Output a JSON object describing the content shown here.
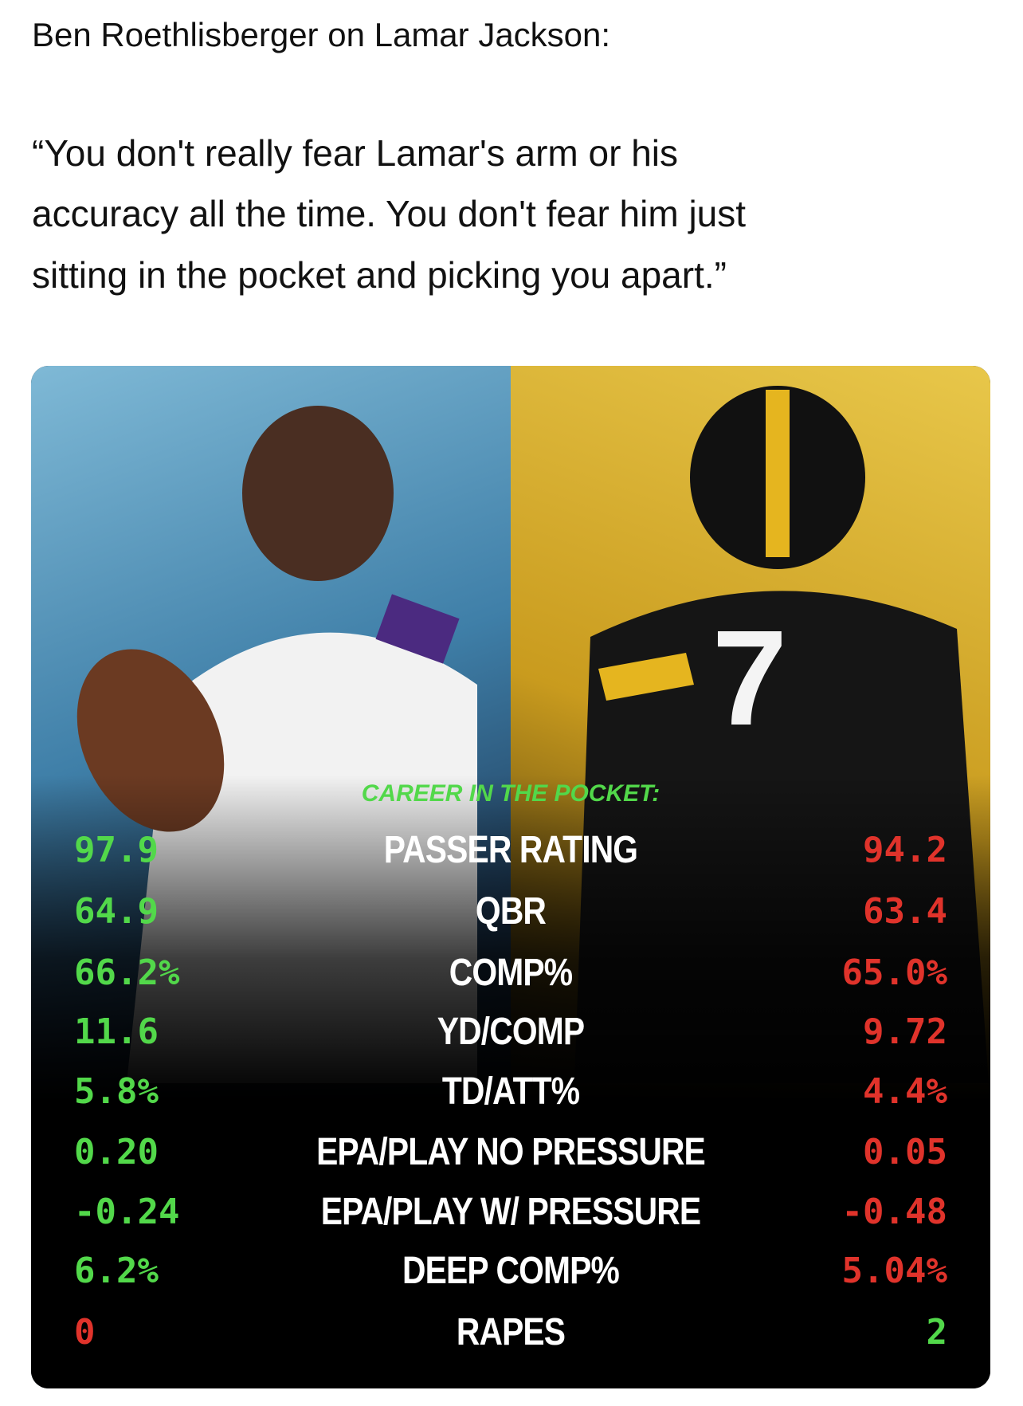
{
  "post": {
    "heading": "Ben Roethlisberger on Lamar Jackson:",
    "quote": [
      "“You don't really fear Lamar's arm or his",
      "accuracy all the time. You don't fear him just",
      "sitting in the pocket and picking you apart.”"
    ]
  },
  "graphic": {
    "subtitle": "CAREER IN THE POCKET:",
    "rows": [
      {
        "left": "97.9",
        "label": "PASSER RATING",
        "right": "94.2",
        "left_color": "#52d84a",
        "right_color": "#e0332b"
      },
      {
        "left": "64.9",
        "label": "QBR",
        "right": "63.4",
        "left_color": "#52d84a",
        "right_color": "#e0332b"
      },
      {
        "left": "66.2%",
        "label": "COMP%",
        "right": "65.0%",
        "left_color": "#52d84a",
        "right_color": "#e0332b"
      },
      {
        "left": "11.6",
        "label": "YD/COMP",
        "right": "9.72",
        "left_color": "#52d84a",
        "right_color": "#e0332b"
      },
      {
        "left": "5.8%",
        "label": "TD/ATT%",
        "right": "4.4%",
        "left_color": "#52d84a",
        "right_color": "#e0332b"
      },
      {
        "left": "0.20",
        "label": "EPA/PLAY NO PRESSURE",
        "right": "0.05",
        "left_color": "#52d84a",
        "right_color": "#e0332b"
      },
      {
        "left": "-0.24",
        "label": "EPA/PLAY W/ PRESSURE",
        "right": "-0.48",
        "left_color": "#52d84a",
        "right_color": "#e0332b"
      },
      {
        "left": "6.2%",
        "label": "DEEP COMP%",
        "right": "5.04%",
        "left_color": "#52d84a",
        "right_color": "#e0332b"
      },
      {
        "left": "0",
        "label": "RAPES",
        "right": "2",
        "left_color": "#e0332b",
        "right_color": "#52d84a"
      }
    ]
  }
}
